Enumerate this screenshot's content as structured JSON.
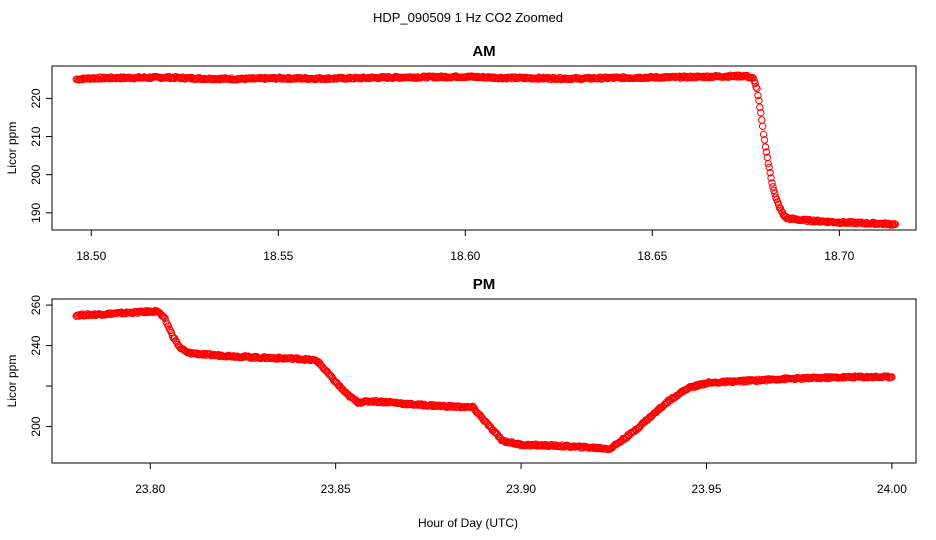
{
  "figure": {
    "title": "HDP_090509  1 Hz CO2 Zoomed",
    "xlabel": "Hour of Day (UTC)"
  },
  "colors": {
    "series": "#ff0000",
    "axes": "#000000",
    "background": "#ffffff"
  },
  "chart_data": [
    {
      "type": "scatter",
      "title": "AM",
      "xlabel": "",
      "ylabel": "Licor ppm",
      "xlim": [
        18.4895,
        18.7205
      ],
      "ylim": [
        185.5,
        228.5
      ],
      "xticks": [
        18.5,
        18.55,
        18.6,
        18.65,
        18.7
      ],
      "xtick_labels": [
        "18.50",
        "18.55",
        "18.60",
        "18.65",
        "18.70"
      ],
      "yticks": [
        190,
        200,
        210,
        220
      ],
      "ytick_labels": [
        "190",
        "200",
        "210",
        "220"
      ],
      "marker": "open-circle",
      "color": "#ff0000",
      "grid": false,
      "points": [
        [
          18.496,
          225.0
        ],
        [
          18.5,
          225.3
        ],
        [
          18.51,
          225.4
        ],
        [
          18.52,
          225.5
        ],
        [
          18.53,
          225.2
        ],
        [
          18.54,
          225.1
        ],
        [
          18.55,
          225.3
        ],
        [
          18.56,
          225.2
        ],
        [
          18.57,
          225.3
        ],
        [
          18.58,
          225.5
        ],
        [
          18.59,
          225.6
        ],
        [
          18.6,
          225.7
        ],
        [
          18.61,
          225.4
        ],
        [
          18.62,
          225.3
        ],
        [
          18.63,
          225.2
        ],
        [
          18.64,
          225.4
        ],
        [
          18.65,
          225.5
        ],
        [
          18.66,
          225.6
        ],
        [
          18.67,
          225.8
        ],
        [
          18.675,
          225.9
        ],
        [
          18.677,
          225.2
        ],
        [
          18.678,
          222.5
        ],
        [
          18.679,
          216.0
        ],
        [
          18.68,
          209.0
        ],
        [
          18.681,
          203.0
        ],
        [
          18.682,
          198.0
        ],
        [
          18.683,
          194.0
        ],
        [
          18.684,
          191.5
        ],
        [
          18.685,
          189.5
        ],
        [
          18.686,
          188.6
        ],
        [
          18.69,
          188.1
        ],
        [
          18.7,
          187.5
        ],
        [
          18.71,
          187.2
        ],
        [
          18.715,
          187.0
        ]
      ]
    },
    {
      "type": "scatter",
      "title": "PM",
      "xlabel": "",
      "ylabel": "Licor ppm",
      "xlim": [
        23.7735,
        24.0065
      ],
      "ylim": [
        182,
        263
      ],
      "xticks": [
        23.8,
        23.85,
        23.9,
        23.95,
        24.0
      ],
      "xtick_labels": [
        "23.80",
        "23.85",
        "23.90",
        "23.95",
        "24.00"
      ],
      "yticks": [
        200,
        220,
        240,
        260
      ],
      "ytick_labels": [
        "200",
        "",
        "240",
        "260"
      ],
      "marker": "open-circle",
      "color": "#ff0000",
      "grid": false,
      "points": [
        [
          23.78,
          255.0
        ],
        [
          23.785,
          255.3
        ],
        [
          23.79,
          255.8
        ],
        [
          23.795,
          256.3
        ],
        [
          23.8,
          256.8
        ],
        [
          23.802,
          257.0
        ],
        [
          23.804,
          253.0
        ],
        [
          23.806,
          245.0
        ],
        [
          23.808,
          239.0
        ],
        [
          23.81,
          236.5
        ],
        [
          23.815,
          235.5
        ],
        [
          23.82,
          235.0
        ],
        [
          23.83,
          234.0
        ],
        [
          23.84,
          233.5
        ],
        [
          23.845,
          232.5
        ],
        [
          23.85,
          222.0
        ],
        [
          23.853,
          216.0
        ],
        [
          23.856,
          212.0
        ],
        [
          23.86,
          212.5
        ],
        [
          23.865,
          212.0
        ],
        [
          23.87,
          211.0
        ],
        [
          23.88,
          210.0
        ],
        [
          23.887,
          209.5
        ],
        [
          23.892,
          199.0
        ],
        [
          23.895,
          193.0
        ],
        [
          23.9,
          191.0
        ],
        [
          23.91,
          190.5
        ],
        [
          23.92,
          189.5
        ],
        [
          23.924,
          189.0
        ],
        [
          23.93,
          197.0
        ],
        [
          23.935,
          205.0
        ],
        [
          23.94,
          213.0
        ],
        [
          23.945,
          219.0
        ],
        [
          23.95,
          221.5
        ],
        [
          23.96,
          222.5
        ],
        [
          23.97,
          223.5
        ],
        [
          23.98,
          224.0
        ],
        [
          23.99,
          224.5
        ],
        [
          24.0,
          224.5
        ]
      ]
    }
  ]
}
